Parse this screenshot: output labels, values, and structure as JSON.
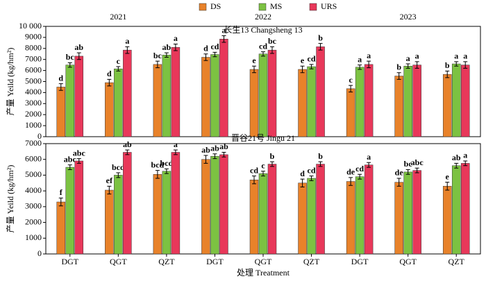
{
  "chart_data": [
    {
      "type": "bar",
      "subtitle": "长生13 Changsheng 13",
      "y_label": "产量 Yeild (kg/hm²)",
      "groups": [
        "2021",
        "2022",
        "2023"
      ],
      "ylim": [
        0,
        10000
      ],
      "yticks": [
        0,
        1000,
        2000,
        3000,
        4000,
        5000,
        6000,
        7000,
        8000,
        9000,
        {
          "value": 10000,
          "label": "10 000"
        }
      ],
      "series": [
        {
          "name": "DS",
          "color": "#e8822a",
          "values": [
            4500,
            4900,
            6550,
            7200,
            6100,
            6100,
            4350,
            5500,
            5650
          ],
          "errors": [
            300,
            300,
            300,
            300,
            300,
            300,
            300,
            300,
            300
          ],
          "letters": [
            "d",
            "d",
            "bc",
            "d",
            "e",
            "e",
            "c",
            "b",
            "b"
          ]
        },
        {
          "name": "MS",
          "color": "#7cc242",
          "values": [
            6500,
            6150,
            7400,
            7450,
            7500,
            6350,
            6300,
            6400,
            6600
          ],
          "errors": [
            200,
            200,
            200,
            200,
            200,
            200,
            200,
            200,
            200
          ],
          "letters": [
            "bc",
            "c",
            "ab",
            "cd",
            "cd",
            "cd",
            "a",
            "a",
            "a"
          ]
        },
        {
          "name": "URS",
          "color": "#e8385a",
          "values": [
            7300,
            7850,
            8100,
            8850,
            7850,
            8150,
            6550,
            6500,
            6500
          ],
          "errors": [
            300,
            300,
            300,
            300,
            300,
            300,
            300,
            300,
            300
          ],
          "letters": [
            "ab",
            "a",
            "a",
            "a",
            "bc",
            "b",
            "a",
            "a",
            "a"
          ]
        }
      ]
    },
    {
      "type": "bar",
      "subtitle": "晋谷21号 Jingu 21",
      "y_label": "产量 Yeild (kg/hm²)",
      "x_label": "处理 Treatment",
      "categories": [
        "DGT",
        "QGT",
        "QZT",
        "DGT",
        "QGT",
        "QZT",
        "DGT",
        "QGT",
        "QZT"
      ],
      "ylim": [
        0,
        7000
      ],
      "yticks": [
        0,
        1000,
        2000,
        3000,
        4000,
        5000,
        6000,
        7000
      ],
      "series": [
        {
          "color": "#e8822a",
          "values": [
            3300,
            4050,
            5050,
            6000,
            4700,
            4500,
            4600,
            4550,
            4300
          ],
          "errors": [
            250,
            250,
            250,
            250,
            250,
            250,
            250,
            250,
            250
          ],
          "letters": [
            "f",
            "ef",
            "bcd",
            "ab",
            "cd",
            "d",
            "de",
            "de",
            "e"
          ]
        },
        {
          "color": "#7cc242",
          "values": [
            5500,
            5000,
            5250,
            6200,
            5100,
            4800,
            4900,
            5200,
            5600
          ],
          "errors": [
            150,
            150,
            150,
            150,
            150,
            150,
            150,
            150,
            150
          ],
          "letters": [
            "abc",
            "bcd",
            "bcd",
            "ab",
            "c",
            "cd",
            "cd",
            "bc",
            "ab"
          ]
        },
        {
          "color": "#e8385a",
          "values": [
            5900,
            6450,
            6450,
            6300,
            5700,
            5700,
            5650,
            5300,
            5750
          ],
          "errors": [
            150,
            150,
            150,
            150,
            150,
            150,
            150,
            150,
            150
          ],
          "letters": [
            "abc",
            "ab",
            "a",
            "ab",
            "b",
            "b",
            "a",
            "abc",
            "a"
          ]
        }
      ]
    }
  ]
}
